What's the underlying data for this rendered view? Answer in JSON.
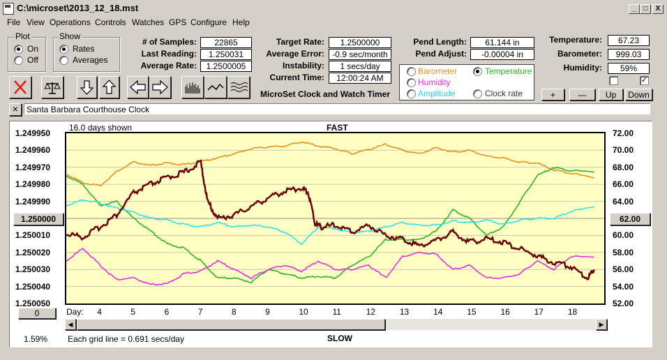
{
  "window": {
    "title": "C:\\microset\\2013_12_18.mst",
    "min": "_",
    "max": "□",
    "close": "X"
  },
  "menu": [
    "File",
    "View",
    "Operations",
    "Controls",
    "Watches",
    "GPS",
    "Configure",
    "Help"
  ],
  "plot_group": {
    "label": "Plot",
    "on": "On",
    "off": "Off"
  },
  "show_group": {
    "label": "Show",
    "rates": "Rates",
    "averages": "Averages"
  },
  "stats": {
    "samples_label": "# of Samples:",
    "samples": "22865",
    "last_label": "Last Reading:",
    "last": "1.250031",
    "avg_label": "Average Rate:",
    "avg": "1.2500005",
    "target_label": "Target Rate:",
    "target": "1.2500000",
    "avgerr_label": "Average Error:",
    "avgerr": "-0.9 sec/month",
    "instab_label": "Instability:",
    "instab": "1 secs/day",
    "time_label": "Current Time:",
    "time": "12:00:24 AM",
    "pendlen_label": "Pend Length:",
    "pendlen": "61.144 in",
    "pendadj_label": "Pend Adjust:",
    "pendadj": "-0.00004 in",
    "temp_label": "Temperature:",
    "temp": "67.23",
    "baro_label": "Barometer:",
    "baro": "999.03",
    "hum_label": "Humidity:",
    "hum": "59%"
  },
  "app_caption": "MicroSet Clock and Watch Timer",
  "series_select": {
    "barometer": "Barometer",
    "temperature": "Temperature",
    "humidity": "Humidity",
    "amplitude": "Amplitude",
    "clockrate": "Clock rate"
  },
  "right_buttons": {
    "plus": "+",
    "minus": "—",
    "up": "Up",
    "down": "Down"
  },
  "clock_name": "Santa Barbara Courthouse Clock",
  "clear_btn": "×",
  "chart_header": {
    "days_shown": "16.0 days shown",
    "fast": "FAST",
    "slow": "SLOW"
  },
  "footer": {
    "left_value": "1.59%",
    "grid_note": "Each grid line = 0.691 secs/day",
    "day_label": "Day:",
    "scroll_btn": "0"
  },
  "left_center_btn": "1.250000",
  "right_center_btn": "62.00",
  "colors": {
    "temperature": "#2ab32a",
    "barometer": "#e8901e",
    "humidity": "#e030e0",
    "amplitude": "#30e0f0",
    "rate": "#6a0000",
    "plotbg": "#ffffc4"
  },
  "chart_data": {
    "type": "line",
    "left_ticks": [
      "1.249950",
      "1.249960",
      "1.249970",
      "1.249980",
      "1.249990",
      "",
      "1.250010",
      "1.250020",
      "1.250030",
      "1.250040",
      "1.250050"
    ],
    "right_ticks": [
      "72.00",
      "70.00",
      "68.00",
      "66.00",
      "64.00",
      "",
      "60.00",
      "58.00",
      "56.00",
      "54.00",
      "52.00"
    ],
    "x_ticks": [
      "4",
      "5",
      "6",
      "7",
      "8",
      "9",
      "10",
      "11",
      "12",
      "13",
      "14",
      "15",
      "16",
      "17",
      "18"
    ],
    "ylim_left": [
      1.24995,
      1.25005
    ],
    "ylim_right": [
      52,
      72
    ],
    "xlim": [
      3,
      19
    ],
    "series": [
      {
        "name": "Barometer",
        "color": "#e8901e",
        "x": [
          3,
          3.5,
          4,
          4.5,
          5,
          5.5,
          6,
          6.5,
          7,
          7.5,
          8,
          8.5,
          9,
          9.5,
          10,
          10.5,
          11,
          11.5,
          12,
          12.5,
          13,
          13.5,
          14,
          14.5,
          15,
          15.5,
          16,
          16.5,
          17,
          17.5,
          18,
          18.7
        ],
        "y": [
          67.2,
          66.2,
          65.8,
          67.5,
          68.6,
          68.2,
          68.5,
          68.3,
          68.7,
          69.1,
          69.6,
          70.2,
          70.4,
          70.5,
          71.0,
          70.5,
          70.2,
          69.6,
          70.1,
          70.7,
          70.0,
          69.6,
          70.3,
          69.8,
          70.0,
          69.3,
          69.1,
          68.6,
          68.5,
          67.7,
          67.3,
          66.8
        ]
      },
      {
        "name": "Temperature",
        "color": "#2ab32a",
        "x": [
          3,
          3.5,
          4,
          4.5,
          5,
          5.5,
          6,
          6.5,
          7,
          7.5,
          8,
          8.5,
          9,
          9.5,
          10,
          10.5,
          11,
          11.5,
          12,
          12.5,
          13,
          13.5,
          14,
          14.5,
          15,
          15.5,
          16,
          16.5,
          17,
          17.5,
          18,
          18.7
        ],
        "y": [
          67.0,
          66.0,
          63.5,
          64.0,
          62.0,
          60.5,
          59.0,
          58.5,
          57.0,
          55.0,
          55.0,
          54.5,
          56.0,
          55.5,
          55.0,
          55.2,
          55.0,
          56.5,
          57.5,
          59.5,
          59.5,
          59.5,
          60.5,
          63.0,
          62.0,
          60.0,
          61.0,
          64.0,
          67.0,
          68.0,
          67.6,
          67.5
        ]
      },
      {
        "name": "Humidity",
        "color": "#e030e0",
        "x": [
          3,
          3.5,
          4,
          4.5,
          5,
          5.5,
          6,
          6.5,
          7,
          7.5,
          8,
          8.5,
          9,
          9.5,
          10,
          10.5,
          11,
          11.5,
          12,
          12.5,
          13,
          13.5,
          14,
          14.5,
          15,
          15.5,
          16,
          16.5,
          17,
          17.5,
          18,
          18.7
        ],
        "y": [
          57.0,
          58.5,
          56.5,
          54.8,
          55.0,
          54.2,
          54.3,
          55.5,
          55.8,
          57.0,
          56.0,
          55.0,
          56.0,
          56.5,
          55.8,
          57.0,
          56.0,
          56.0,
          56.5,
          55.0,
          57.5,
          58.0,
          57.8,
          56.0,
          56.5,
          55.0,
          55.0,
          55.5,
          57.0,
          56.0,
          57.5,
          57.5
        ]
      },
      {
        "name": "Amplitude",
        "color": "#30e0f0",
        "x": [
          3,
          3.5,
          4,
          4.5,
          5,
          5.5,
          6,
          6.5,
          7,
          7.5,
          8,
          8.5,
          9,
          9.5,
          10,
          10.5,
          11,
          11.5,
          12,
          12.5,
          13,
          13.5,
          14,
          14.5,
          15,
          15.5,
          16,
          16.5,
          17,
          17.5,
          18,
          18.7
        ],
        "y": [
          63.5,
          64.2,
          63.8,
          63.2,
          62.7,
          62.0,
          61.8,
          61.3,
          61.0,
          61.5,
          61.0,
          61.2,
          61.0,
          60.4,
          59.0,
          61.0,
          60.8,
          60.3,
          60.5,
          61.0,
          61.5,
          61.2,
          61.2,
          61.7,
          61.5,
          61.8,
          61.3,
          61.8,
          62.0,
          62.0,
          62.8,
          63.4
        ]
      },
      {
        "name": "Clock rate",
        "color": "#6a0000",
        "x": [
          3,
          3.5,
          4,
          4.5,
          5,
          5.5,
          6,
          6.5,
          7,
          7.2,
          7.5,
          8,
          8.5,
          9,
          9.5,
          10,
          10.2,
          10.4,
          10.6,
          11,
          11.5,
          12,
          12.5,
          13,
          13.5,
          14,
          14.5,
          15,
          15.5,
          16,
          16.5,
          17,
          17.5,
          18,
          18.5,
          18.7
        ],
        "y": [
          1.250009,
          1.250011,
          1.250005,
          1.249998,
          1.249985,
          1.24998,
          1.249976,
          1.249973,
          1.249967,
          1.24999,
          1.25,
          1.249998,
          1.249993,
          1.249988,
          1.249984,
          1.249982,
          1.249985,
          1.250003,
          1.250005,
          1.250004,
          1.250008,
          1.250004,
          1.25001,
          1.250012,
          1.250016,
          1.250013,
          1.250008,
          1.250014,
          1.250012,
          1.250014,
          1.250018,
          1.250022,
          1.250026,
          1.250028,
          1.250035,
          1.25003
        ]
      }
    ]
  }
}
